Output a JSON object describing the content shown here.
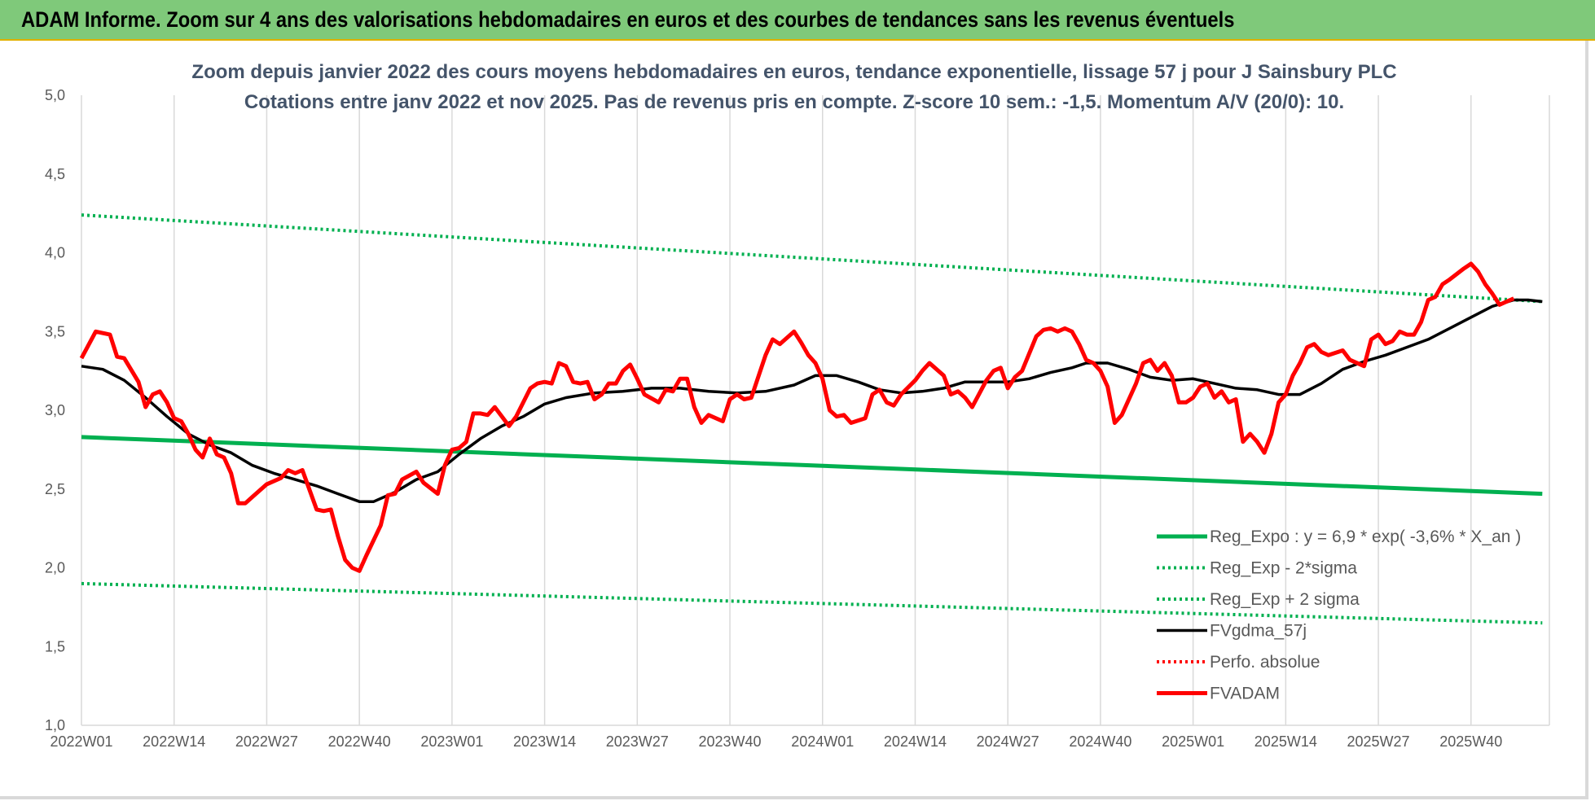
{
  "header": {
    "title": "ADAM Informe. Zoom sur 4 ans des valorisations hebdomadaires en euros et des courbes de tendances sans les revenus éventuels"
  },
  "colors": {
    "header_bg": "#7fc97a",
    "reg": "#00b050",
    "black": "#000000",
    "red": "#ff0000",
    "grid": "#d9d9d9"
  },
  "chart_data": {
    "type": "line",
    "title": [
      "Zoom depuis janvier 2022 des cours moyens hebdomadaires en euros, tendance exponentielle, lissage 57 j pour J Sainsbury PLC",
      "Cotations entre janv 2022 et nov 2025. Pas de revenus pris en compte. Z-score 10 sem.: -1,5. Momentum A/V (20/0): 10."
    ],
    "xlabel": "",
    "ylabel": "",
    "ylim": [
      1.0,
      5.0
    ],
    "y_ticks": [
      "1,0",
      "1,5",
      "2,0",
      "2,5",
      "3,0",
      "3,5",
      "4,0",
      "4,5",
      "5,0"
    ],
    "x_ticks": [
      {
        "label": "2022W01",
        "x": 0
      },
      {
        "label": "2022W14",
        "x": 13
      },
      {
        "label": "2022W27",
        "x": 26
      },
      {
        "label": "2022W40",
        "x": 39
      },
      {
        "label": "2023W01",
        "x": 52
      },
      {
        "label": "2023W14",
        "x": 65
      },
      {
        "label": "2023W27",
        "x": 78
      },
      {
        "label": "2023W40",
        "x": 91
      },
      {
        "label": "2024W01",
        "x": 104
      },
      {
        "label": "2024W14",
        "x": 117
      },
      {
        "label": "2024W27",
        "x": 130
      },
      {
        "label": "2024W40",
        "x": 143
      },
      {
        "label": "2025W01",
        "x": 156
      },
      {
        "label": "2025W14",
        "x": 169
      },
      {
        "label": "2025W27",
        "x": 182
      },
      {
        "label": "2025W40",
        "x": 195
      }
    ],
    "x_range": [
      0,
      206
    ],
    "grid": "vertical",
    "legend_position": "bottom-right",
    "series": [
      {
        "name": "Reg_Expo : y = 6,9 * exp( -3,6% * X_an )",
        "style": "solid-thick",
        "color": "#00b050",
        "points": [
          [
            0,
            2.83
          ],
          [
            205,
            2.47
          ]
        ]
      },
      {
        "name": "Reg_Exp - 2*sigma",
        "style": "dotted",
        "color": "#00b050",
        "points": [
          [
            0,
            1.9
          ],
          [
            205,
            1.65
          ]
        ]
      },
      {
        "name": "Reg_Exp + 2 sigma",
        "style": "dotted",
        "color": "#00b050",
        "points": [
          [
            0,
            4.24
          ],
          [
            205,
            3.69
          ]
        ]
      },
      {
        "name": "FVgdma_57j",
        "style": "solid",
        "color": "#000000",
        "points": [
          [
            0,
            3.28
          ],
          [
            3,
            3.26
          ],
          [
            6,
            3.19
          ],
          [
            9,
            3.08
          ],
          [
            12,
            2.96
          ],
          [
            15,
            2.85
          ],
          [
            18,
            2.78
          ],
          [
            21,
            2.73
          ],
          [
            24,
            2.65
          ],
          [
            27,
            2.6
          ],
          [
            30,
            2.56
          ],
          [
            33,
            2.52
          ],
          [
            36,
            2.47
          ],
          [
            39,
            2.42
          ],
          [
            41,
            2.42
          ],
          [
            44,
            2.48
          ],
          [
            47,
            2.56
          ],
          [
            50,
            2.61
          ],
          [
            53,
            2.72
          ],
          [
            56,
            2.82
          ],
          [
            59,
            2.9
          ],
          [
            62,
            2.96
          ],
          [
            65,
            3.04
          ],
          [
            68,
            3.08
          ],
          [
            72,
            3.11
          ],
          [
            76,
            3.12
          ],
          [
            80,
            3.14
          ],
          [
            84,
            3.14
          ],
          [
            88,
            3.12
          ],
          [
            92,
            3.11
          ],
          [
            96,
            3.12
          ],
          [
            100,
            3.16
          ],
          [
            103,
            3.22
          ],
          [
            106,
            3.22
          ],
          [
            109,
            3.18
          ],
          [
            112,
            3.13
          ],
          [
            115,
            3.11
          ],
          [
            118,
            3.12
          ],
          [
            121,
            3.14
          ],
          [
            124,
            3.18
          ],
          [
            127,
            3.18
          ],
          [
            130,
            3.18
          ],
          [
            133,
            3.2
          ],
          [
            136,
            3.24
          ],
          [
            139,
            3.27
          ],
          [
            141,
            3.3
          ],
          [
            144,
            3.3
          ],
          [
            147,
            3.26
          ],
          [
            150,
            3.21
          ],
          [
            153,
            3.19
          ],
          [
            156,
            3.2
          ],
          [
            159,
            3.17
          ],
          [
            162,
            3.14
          ],
          [
            165,
            3.13
          ],
          [
            168,
            3.1
          ],
          [
            171,
            3.1
          ],
          [
            174,
            3.17
          ],
          [
            177,
            3.26
          ],
          [
            180,
            3.31
          ],
          [
            183,
            3.35
          ],
          [
            186,
            3.4
          ],
          [
            189,
            3.45
          ],
          [
            192,
            3.52
          ],
          [
            195,
            3.59
          ],
          [
            198,
            3.66
          ],
          [
            201,
            3.7
          ],
          [
            203,
            3.7
          ],
          [
            205,
            3.69
          ]
        ]
      },
      {
        "name": "Perfo. absolue",
        "style": "dotted",
        "color": "#ff0000",
        "points": []
      },
      {
        "name": "FVADAM",
        "style": "solid-thick",
        "color": "#ff0000",
        "points": [
          [
            0,
            3.33
          ],
          [
            2,
            3.5
          ],
          [
            4,
            3.48
          ],
          [
            5,
            3.34
          ],
          [
            6,
            3.33
          ],
          [
            8,
            3.18
          ],
          [
            9,
            3.02
          ],
          [
            10,
            3.1
          ],
          [
            11,
            3.12
          ],
          [
            12,
            3.05
          ],
          [
            13,
            2.95
          ],
          [
            14,
            2.93
          ],
          [
            15,
            2.85
          ],
          [
            16,
            2.75
          ],
          [
            17,
            2.7
          ],
          [
            18,
            2.82
          ],
          [
            19,
            2.72
          ],
          [
            20,
            2.7
          ],
          [
            21,
            2.6
          ],
          [
            22,
            2.41
          ],
          [
            23,
            2.41
          ],
          [
            24,
            2.45
          ],
          [
            26,
            2.53
          ],
          [
            28,
            2.57
          ],
          [
            29,
            2.62
          ],
          [
            30,
            2.6
          ],
          [
            31,
            2.62
          ],
          [
            33,
            2.37
          ],
          [
            34,
            2.36
          ],
          [
            35,
            2.37
          ],
          [
            36,
            2.2
          ],
          [
            37,
            2.05
          ],
          [
            38,
            2.0
          ],
          [
            39,
            1.98
          ],
          [
            40,
            2.08
          ],
          [
            42,
            2.27
          ],
          [
            43,
            2.46
          ],
          [
            44,
            2.47
          ],
          [
            45,
            2.56
          ],
          [
            47,
            2.61
          ],
          [
            48,
            2.54
          ],
          [
            50,
            2.47
          ],
          [
            51,
            2.65
          ],
          [
            52,
            2.75
          ],
          [
            53,
            2.76
          ],
          [
            54,
            2.8
          ],
          [
            55,
            2.98
          ],
          [
            56,
            2.98
          ],
          [
            57,
            2.97
          ],
          [
            58,
            3.02
          ],
          [
            60,
            2.9
          ],
          [
            61,
            2.96
          ],
          [
            63,
            3.14
          ],
          [
            64,
            3.17
          ],
          [
            65,
            3.18
          ],
          [
            66,
            3.17
          ],
          [
            67,
            3.3
          ],
          [
            68,
            3.28
          ],
          [
            69,
            3.18
          ],
          [
            70,
            3.17
          ],
          [
            71,
            3.18
          ],
          [
            72,
            3.07
          ],
          [
            73,
            3.1
          ],
          [
            74,
            3.17
          ],
          [
            75,
            3.17
          ],
          [
            76,
            3.25
          ],
          [
            77,
            3.29
          ],
          [
            78,
            3.2
          ],
          [
            79,
            3.1
          ],
          [
            81,
            3.05
          ],
          [
            82,
            3.13
          ],
          [
            83,
            3.12
          ],
          [
            84,
            3.2
          ],
          [
            85,
            3.2
          ],
          [
            86,
            3.02
          ],
          [
            87,
            2.92
          ],
          [
            88,
            2.97
          ],
          [
            90,
            2.93
          ],
          [
            91,
            3.07
          ],
          [
            92,
            3.1
          ],
          [
            93,
            3.07
          ],
          [
            94,
            3.08
          ],
          [
            96,
            3.35
          ],
          [
            97,
            3.45
          ],
          [
            98,
            3.42
          ],
          [
            100,
            3.5
          ],
          [
            101,
            3.43
          ],
          [
            102,
            3.35
          ],
          [
            103,
            3.3
          ],
          [
            104,
            3.2
          ],
          [
            105,
            3.0
          ],
          [
            106,
            2.96
          ],
          [
            107,
            2.97
          ],
          [
            108,
            2.92
          ],
          [
            110,
            2.95
          ],
          [
            111,
            3.1
          ],
          [
            112,
            3.13
          ],
          [
            113,
            3.05
          ],
          [
            114,
            3.03
          ],
          [
            115,
            3.1
          ],
          [
            117,
            3.19
          ],
          [
            118,
            3.25
          ],
          [
            119,
            3.3
          ],
          [
            121,
            3.22
          ],
          [
            122,
            3.1
          ],
          [
            123,
            3.12
          ],
          [
            124,
            3.08
          ],
          [
            125,
            3.02
          ],
          [
            127,
            3.19
          ],
          [
            128,
            3.25
          ],
          [
            129,
            3.27
          ],
          [
            130,
            3.14
          ],
          [
            131,
            3.21
          ],
          [
            132,
            3.25
          ],
          [
            134,
            3.47
          ],
          [
            135,
            3.51
          ],
          [
            136,
            3.52
          ],
          [
            137,
            3.5
          ],
          [
            138,
            3.52
          ],
          [
            139,
            3.5
          ],
          [
            140,
            3.42
          ],
          [
            141,
            3.32
          ],
          [
            142,
            3.3
          ],
          [
            143,
            3.25
          ],
          [
            144,
            3.15
          ],
          [
            145,
            2.92
          ],
          [
            146,
            2.97
          ],
          [
            148,
            3.17
          ],
          [
            149,
            3.3
          ],
          [
            150,
            3.32
          ],
          [
            151,
            3.25
          ],
          [
            152,
            3.3
          ],
          [
            153,
            3.22
          ],
          [
            154,
            3.05
          ],
          [
            155,
            3.05
          ],
          [
            156,
            3.08
          ],
          [
            157,
            3.15
          ],
          [
            158,
            3.17
          ],
          [
            159,
            3.08
          ],
          [
            160,
            3.12
          ],
          [
            161,
            3.05
          ],
          [
            162,
            3.07
          ],
          [
            163,
            2.8
          ],
          [
            164,
            2.85
          ],
          [
            165,
            2.8
          ],
          [
            166,
            2.73
          ],
          [
            167,
            2.85
          ],
          [
            168,
            3.05
          ],
          [
            169,
            3.1
          ],
          [
            170,
            3.22
          ],
          [
            171,
            3.3
          ],
          [
            172,
            3.4
          ],
          [
            173,
            3.42
          ],
          [
            174,
            3.37
          ],
          [
            175,
            3.35
          ],
          [
            177,
            3.38
          ],
          [
            178,
            3.32
          ],
          [
            180,
            3.28
          ],
          [
            181,
            3.45
          ],
          [
            182,
            3.48
          ],
          [
            183,
            3.42
          ],
          [
            184,
            3.44
          ],
          [
            185,
            3.5
          ],
          [
            186,
            3.48
          ],
          [
            187,
            3.48
          ],
          [
            188,
            3.56
          ],
          [
            189,
            3.7
          ],
          [
            190,
            3.72
          ],
          [
            191,
            3.8
          ],
          [
            192,
            3.83
          ],
          [
            194,
            3.9
          ],
          [
            195,
            3.93
          ],
          [
            196,
            3.88
          ],
          [
            197,
            3.8
          ],
          [
            198,
            3.74
          ],
          [
            199,
            3.67
          ],
          [
            200,
            3.69
          ],
          [
            201,
            3.71
          ]
        ]
      }
    ]
  }
}
